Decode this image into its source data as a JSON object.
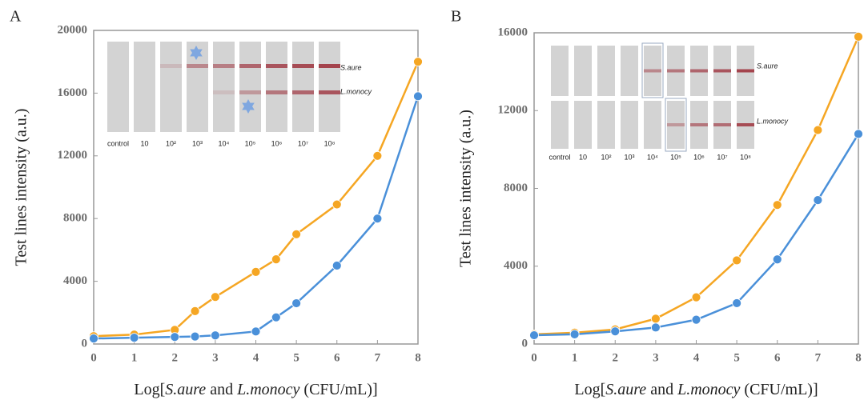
{
  "chart_data": [
    {
      "type": "line",
      "panel": "A",
      "x_label": [
        "Log[",
        "S.aure",
        " and ",
        "L.monocy",
        " (CFU/mL)]"
      ],
      "y_label": "Test lines intensity (a.u.)",
      "x": [
        0,
        1,
        2,
        2.5,
        3,
        4,
        4.5,
        5,
        6,
        7,
        8
      ],
      "series": [
        {
          "color": "#f5a623",
          "values": [
            500,
            600,
            900,
            2100,
            3000,
            4600,
            5400,
            7000,
            8900,
            12000,
            18000
          ]
        },
        {
          "color": "#4a90d9",
          "values": [
            350,
            400,
            450,
            480,
            550,
            800,
            1700,
            2600,
            5000,
            8000,
            15800
          ]
        }
      ],
      "xlim": [
        0,
        8
      ],
      "xticks": [
        0,
        1,
        2,
        3,
        4,
        5,
        6,
        7,
        8
      ],
      "ylim": [
        0,
        20000
      ],
      "yticks": [
        0,
        4000,
        8000,
        12000,
        16000,
        20000
      ],
      "inset_labels": [
        "control",
        "10",
        "10²",
        "10³",
        "10⁴",
        "10⁵",
        "10⁶",
        "10⁷",
        "10⁸"
      ],
      "inset_lines": [
        "S.aure",
        "L.monocy"
      ]
    },
    {
      "type": "line",
      "panel": "B",
      "x_label": [
        "Log[",
        "S.aure",
        " and ",
        "L.monocy",
        " (CFU/mL)]"
      ],
      "y_label": "Test lines intensity (a.u.)",
      "x": [
        0,
        1,
        2,
        3,
        4,
        5,
        6,
        7,
        8
      ],
      "series": [
        {
          "color": "#f5a623",
          "values": [
            500,
            580,
            750,
            1300,
            2400,
            4300,
            7150,
            11000,
            15800
          ]
        },
        {
          "color": "#4a90d9",
          "values": [
            450,
            500,
            650,
            850,
            1250,
            2100,
            4350,
            7400,
            10800
          ]
        }
      ],
      "xlim": [
        0,
        8
      ],
      "xticks": [
        0,
        1,
        2,
        3,
        4,
        5,
        6,
        7,
        8
      ],
      "ylim": [
        0,
        16000
      ],
      "yticks": [
        0,
        4000,
        8000,
        12000,
        16000
      ],
      "inset_labels": [
        "control",
        "10",
        "10²",
        "10³",
        "10⁴",
        "10⁵",
        "10⁶",
        "10⁷",
        "10⁸"
      ],
      "inset_lines": [
        "S.aure",
        "L.monocy"
      ]
    }
  ]
}
